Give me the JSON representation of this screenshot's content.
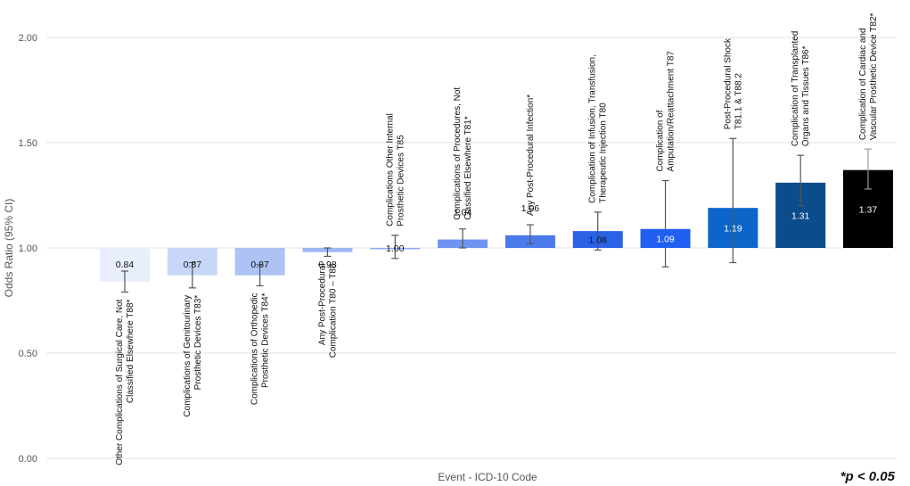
{
  "chart_data": {
    "type": "bar",
    "ylabel": "Odds Ratio (95% CI)",
    "xlabel": "Event - ICD-10 Code",
    "ylim": [
      0,
      2.0
    ],
    "yticks": [
      "0.00",
      "0.50",
      "1.00",
      "1.50",
      "2.00"
    ],
    "baseline": 1.0,
    "grid": true,
    "annotation": "*p < 0.05",
    "bars": [
      {
        "label": [
          "Other Complications of Surgical Care, Not",
          "Classified Elsewhere T88*"
        ],
        "value": 0.84,
        "value_label": "0.84",
        "ci": [
          0.79,
          0.89
        ],
        "color": "#e8eefc"
      },
      {
        "label": [
          "Complications of Genitourinary",
          "Prosthetic Devices T83*"
        ],
        "value": 0.87,
        "value_label": "0.87",
        "ci": [
          0.81,
          0.93
        ],
        "color": "#c8d7f9"
      },
      {
        "label": [
          "Complications of Orthopedic",
          "Prosthetic Devices T84*"
        ],
        "value": 0.87,
        "value_label": "0.87",
        "ci": [
          0.82,
          0.92
        ],
        "color": "#adc3f6"
      },
      {
        "label": [
          "Any Post-Procedural",
          "Complication T80 – T88"
        ],
        "value": 0.98,
        "value_label": "0.98",
        "ci": [
          0.96,
          1.0
        ],
        "color": "#9cb7f4"
      },
      {
        "label": [
          "Complications Other Internal",
          "Prosthetic Devices T85"
        ],
        "value": 1.0,
        "value_label": "1.00",
        "ci": [
          0.95,
          1.06
        ],
        "color": "#8eaaf2"
      },
      {
        "label": [
          "Complications of Procedures, Not",
          "Classified Elsewhere T81*"
        ],
        "value": 1.04,
        "value_label": "1.04",
        "ci": [
          1.0,
          1.09
        ],
        "color": "#6f93f0"
      },
      {
        "label": [
          "Any Post-Procedural Infection*"
        ],
        "value": 1.06,
        "value_label": "1.06",
        "ci": [
          1.02,
          1.11
        ],
        "color": "#4a7aec"
      },
      {
        "label": [
          "Complication of Infusion, Transfusion,",
          "Therapeutic Injection T80"
        ],
        "value": 1.08,
        "value_label": "1.08",
        "ci": [
          0.99,
          1.17
        ],
        "color": "#2a62e6"
      },
      {
        "label": [
          "Complication of",
          "Amputation/Reattachment T87"
        ],
        "value": 1.09,
        "value_label": "1.09",
        "ci": [
          0.91,
          1.32
        ],
        "color": "#1f60f2"
      },
      {
        "label": [
          "Post-Procedural Shock",
          "T81.1 & T88.2"
        ],
        "value": 1.19,
        "value_label": "1.19",
        "ci": [
          0.93,
          1.52
        ],
        "color": "#0c66c9"
      },
      {
        "label": [
          "Complication of Transplanted",
          "Organs and Tissues T86*"
        ],
        "value": 1.31,
        "value_label": "1.31",
        "ci": [
          1.2,
          1.44
        ],
        "color": "#0b4c8c"
      },
      {
        "label": [
          "Complication of Cardiac and",
          "Vascular Prosthetic Device T82*"
        ],
        "value": 1.37,
        "value_label": "1.37",
        "ci": [
          1.28,
          1.47
        ],
        "color": "#000000"
      }
    ]
  }
}
